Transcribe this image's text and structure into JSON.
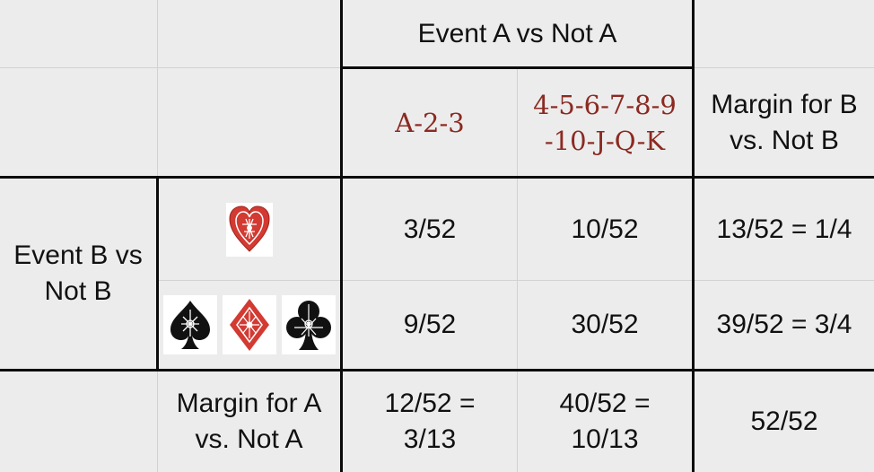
{
  "header": {
    "event_a": "Event A vs Not A"
  },
  "columns": {
    "a_123": "A-2-3",
    "a_rest_line1": "4-5-6-7-8-9",
    "a_rest_line2": "-10-J-Q-K",
    "margin_b_line1": "Margin for B",
    "margin_b_line2": "vs. Not B"
  },
  "rows": {
    "event_b_line1": "Event B vs",
    "event_b_line2": "Not B",
    "hearts": {
      "icon": "heart-suit-icon",
      "a": "3/52",
      "not_a": "10/52",
      "margin": "13/52 = 1/4"
    },
    "others": {
      "icons": [
        "spade-suit-icon",
        "diamond-suit-icon",
        "club-suit-icon"
      ],
      "a": "9/52",
      "not_a": "30/52",
      "margin": "39/52 = 3/4"
    },
    "margin_a": {
      "label_line1": "Margin for A",
      "label_line2": "vs. Not A",
      "a_line1": "12/52 =",
      "a_line2": "3/13",
      "not_a_line1": "40/52 =",
      "not_a_line2": "10/13",
      "total": "52/52"
    }
  },
  "colors": {
    "rank_text": "#8b2a22",
    "heart": "#d23a32",
    "background": "#ececec"
  }
}
